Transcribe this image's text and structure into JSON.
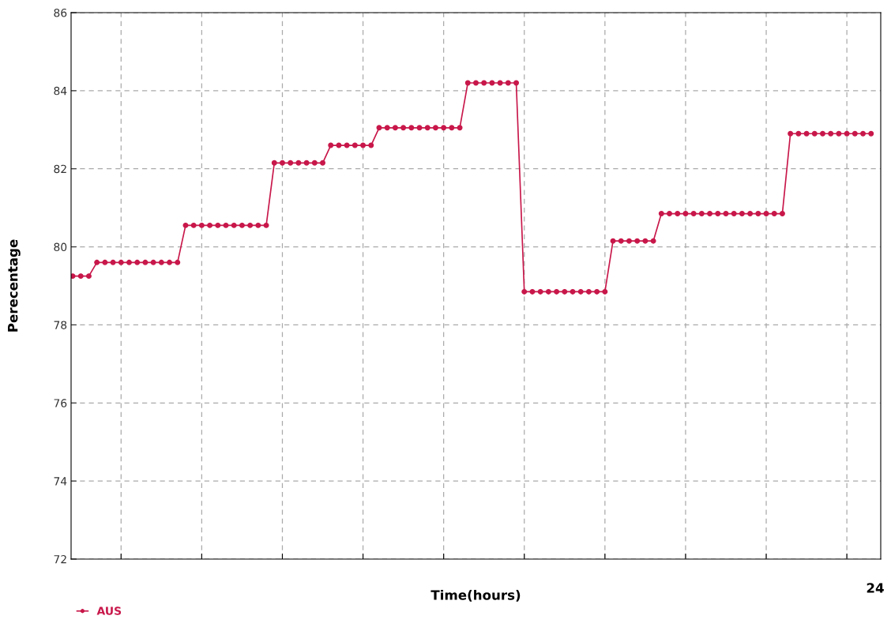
{
  "chart_data": {
    "type": "line",
    "xlabel": "Time(hours)",
    "ylabel": "Perecentage",
    "categories": [
      null,
      null,
      null,
      null,
      null,
      null,
      null,
      null,
      null,
      null,
      null,
      null,
      null,
      null,
      null,
      null,
      null,
      null,
      null,
      null,
      null,
      null,
      null,
      null,
      null,
      null,
      null,
      null,
      null,
      null,
      null,
      null,
      null,
      null,
      null,
      null,
      null,
      null,
      null,
      null,
      null,
      null,
      null,
      null,
      null,
      null,
      null,
      null,
      null,
      null,
      null,
      null,
      null,
      null,
      null,
      null,
      null,
      null,
      null,
      null,
      null,
      null,
      null,
      null,
      null,
      null,
      null,
      null,
      null,
      null,
      null,
      null,
      null,
      null,
      null,
      null,
      null,
      null,
      null,
      null,
      null,
      null,
      null,
      null,
      null,
      null,
      null,
      null,
      null,
      null,
      null,
      null,
      null,
      null,
      null,
      null,
      null,
      null,
      null,
      null
    ],
    "series": [
      {
        "name": "AUS",
        "color": "#c8174a",
        "values": [
          79.25,
          79.25,
          79.25,
          79.6,
          79.6,
          79.6,
          79.6,
          79.6,
          79.6,
          79.6,
          79.6,
          79.6,
          79.6,
          79.6,
          80.55,
          80.55,
          80.55,
          80.55,
          80.55,
          80.55,
          80.55,
          80.55,
          80.55,
          80.55,
          80.55,
          82.15,
          82.15,
          82.15,
          82.15,
          82.15,
          82.15,
          82.15,
          82.6,
          82.6,
          82.6,
          82.6,
          82.6,
          82.6,
          83.05,
          83.05,
          83.05,
          83.05,
          83.05,
          83.05,
          83.05,
          83.05,
          83.05,
          83.05,
          83.05,
          84.2,
          84.2,
          84.2,
          84.2,
          84.2,
          84.2,
          84.2,
          78.85,
          78.85,
          78.85,
          78.85,
          78.85,
          78.85,
          78.85,
          78.85,
          78.85,
          78.85,
          78.85,
          80.15,
          80.15,
          80.15,
          80.15,
          80.15,
          80.15,
          80.85,
          80.85,
          80.85,
          80.85,
          80.85,
          80.85,
          80.85,
          80.85,
          80.85,
          80.85,
          80.85,
          80.85,
          80.85,
          80.85,
          80.85,
          80.85,
          82.9,
          82.9,
          82.9,
          82.9,
          82.9,
          82.9,
          82.9,
          82.9,
          82.9,
          82.9,
          82.9
        ]
      }
    ],
    "ylim": [
      72,
      86
    ],
    "yticks": [
      72,
      74,
      76,
      78,
      80,
      82,
      84,
      86
    ],
    "annotations": [
      "24"
    ],
    "grid": true,
    "legend": "bottom left",
    "marker": "circle",
    "line_style": "solid",
    "tick_labels": "y"
  }
}
